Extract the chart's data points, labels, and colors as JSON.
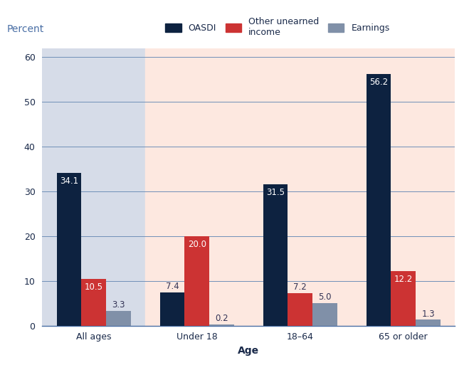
{
  "categories": [
    "All ages",
    "Under 18",
    "18–64",
    "65 or older"
  ],
  "series": {
    "OASDI": [
      34.1,
      7.4,
      31.5,
      56.2
    ],
    "Other unearned\nincome": [
      10.5,
      20.0,
      7.2,
      12.2
    ],
    "Earnings": [
      3.3,
      0.2,
      5.0,
      1.3
    ]
  },
  "colors": {
    "OASDI": "#0d2240",
    "Other unearned\nincome": "#cc3333",
    "Earnings": "#8090a8"
  },
  "bg_colors": [
    "#d6dce8",
    "#fde8e0",
    "#fde8e0",
    "#fde8e0"
  ],
  "ylabel": "Percent",
  "xlabel": "Age",
  "ylim": [
    0,
    62
  ],
  "yticks": [
    0,
    10,
    20,
    30,
    40,
    50,
    60
  ],
  "bar_width": 0.24,
  "label_fontsize": 8.5,
  "axis_label_fontsize": 10,
  "tick_fontsize": 9,
  "legend_fontsize": 9,
  "percent_label_color": "#4a6fa5",
  "axis_color": "#4a6fa5",
  "grid_color": "#7090b8"
}
